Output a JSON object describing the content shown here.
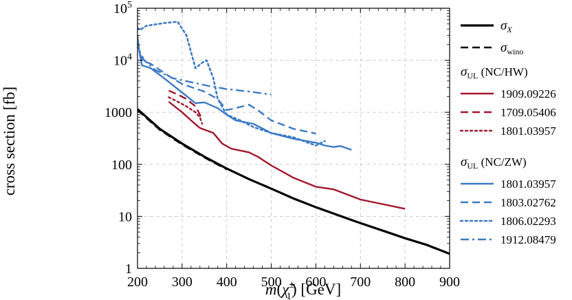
{
  "chart_data": {
    "type": "line",
    "xlabel_text": "[GeV]",
    "xlabel_symbol": "m",
    "xlabel_subscript": "1",
    "xlabel_superscript": "±",
    "ylabel": "cross section [fb]",
    "xlim": [
      200,
      900
    ],
    "ylim": [
      1,
      100000
    ],
    "yscale": "log",
    "grid": true,
    "legend_position": "right",
    "x_ticks": [
      200,
      300,
      400,
      500,
      600,
      700,
      800,
      900
    ],
    "y_ticks": [
      {
        "value": 1,
        "label": "1"
      },
      {
        "value": 10,
        "label": "10"
      },
      {
        "value": 100,
        "label": "100"
      },
      {
        "value": 1000,
        "label": "1000"
      },
      {
        "value": 10000,
        "label": "10",
        "exp": "4"
      },
      {
        "value": 100000,
        "label": "10",
        "exp": "5"
      }
    ],
    "legend_groups": [
      {
        "heading_symbol": "σ",
        "heading_sub": "UL",
        "heading_text": "(NC/HW)"
      },
      {
        "heading_symbol": "σ",
        "heading_sub": "UL",
        "heading_text": "(NC/ZW)"
      }
    ],
    "series": [
      {
        "name": "σ",
        "sub": "X",
        "color": "#000000",
        "style": "solid",
        "width": 3.2,
        "legend_group": -1,
        "x": [
          200,
          250,
          300,
          350,
          400,
          450,
          500,
          550,
          600,
          650,
          700,
          750,
          800,
          850,
          900
        ],
        "y": [
          1150,
          480,
          250,
          140,
          83,
          52,
          34,
          22,
          15,
          10.5,
          7.4,
          5.3,
          3.8,
          2.8,
          1.9
        ]
      },
      {
        "name": "σ",
        "sub": "wino",
        "color": "#000000",
        "style": "dashed",
        "width": 2.5,
        "legend_group": -1,
        "x": [
          200,
          250,
          300,
          350,
          400
        ],
        "y": [
          1100,
          460,
          240,
          135,
          80
        ]
      },
      {
        "name": "1909.09226",
        "color": "#a3162b",
        "style": "solid",
        "width": 2.4,
        "legend_group": 0,
        "x": [
          270,
          300,
          320,
          340,
          370,
          390,
          410,
          450,
          470,
          500,
          550,
          600,
          640,
          700,
          800
        ],
        "y": [
          1600,
          1000,
          700,
          500,
          400,
          250,
          200,
          170,
          140,
          95,
          55,
          37,
          33,
          21,
          14
        ]
      },
      {
        "name": "1709.05406",
        "color": "#a3162b",
        "style": "dashed",
        "width": 2.4,
        "legend_group": 0,
        "x": [
          270,
          290,
          310,
          330,
          340,
          345
        ],
        "y": [
          2600,
          2200,
          1800,
          1300,
          900,
          700
        ]
      },
      {
        "name": "1801.03957",
        "color": "#a3162b",
        "style": "dotted",
        "width": 2.4,
        "legend_group": 0,
        "x": [
          270,
          290,
          310,
          330,
          340,
          345
        ],
        "y": [
          1950,
          1600,
          1300,
          1000,
          800,
          600
        ]
      },
      {
        "name": "1801.03957",
        "color": "#3b79c4",
        "style": "solid",
        "width": 2.4,
        "legend_group": 1,
        "x": [
          200,
          203,
          206,
          210,
          230,
          260,
          300,
          330,
          350,
          380,
          400,
          420,
          460,
          500,
          550,
          600,
          620,
          640,
          655,
          665,
          680
        ],
        "y": [
          30000,
          17000,
          12000,
          8000,
          7000,
          4500,
          2400,
          1500,
          1550,
          1200,
          900,
          700,
          600,
          400,
          310,
          260,
          230,
          215,
          225,
          210,
          190
        ]
      },
      {
        "name": "1803.02762",
        "color": "#3b79c4",
        "style": "dashed",
        "width": 2.4,
        "legend_group": 1,
        "x": [
          200,
          205,
          210,
          230,
          270,
          300,
          350,
          380,
          400,
          420,
          450,
          470,
          500,
          550,
          600
        ],
        "y": [
          22000,
          14000,
          10000,
          8500,
          5000,
          3500,
          2500,
          1800,
          1100,
          1200,
          1400,
          1100,
          700,
          480,
          390
        ]
      },
      {
        "name": "1806.02293",
        "color": "#3b79c4",
        "style": "dotted",
        "width": 2.6,
        "legend_group": 1,
        "x": [
          200,
          205,
          220,
          260,
          290,
          310,
          330,
          345,
          355,
          370,
          380,
          400,
          430,
          460,
          500,
          550,
          600,
          620
        ],
        "y": [
          42000,
          38000,
          46000,
          52000,
          55000,
          30000,
          7000,
          9000,
          10000,
          4500,
          1800,
          900,
          700,
          520,
          400,
          330,
          230,
          280
        ]
      },
      {
        "name": "1912.08479",
        "color": "#3b79c4",
        "style": "dashdot",
        "width": 2.4,
        "legend_group": 1,
        "x": [
          200,
          205,
          215,
          240,
          280,
          320,
          360,
          400,
          450,
          500
        ],
        "y": [
          25000,
          15000,
          10000,
          6500,
          4500,
          3800,
          3200,
          2800,
          2500,
          2200
        ]
      }
    ]
  }
}
